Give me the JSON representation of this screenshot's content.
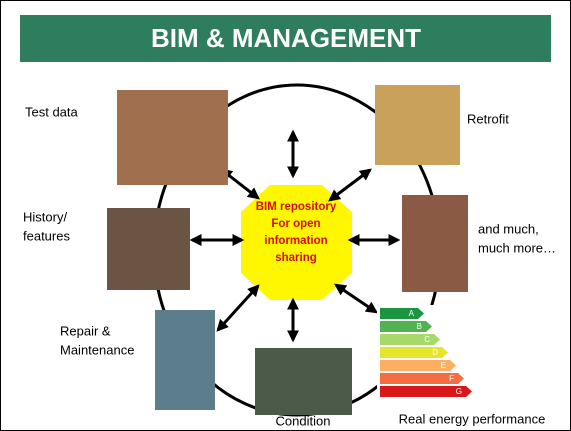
{
  "header": {
    "title": "BIM & MANAGEMENT"
  },
  "center": {
    "lines": [
      "BIM repository",
      "For open",
      "information",
      "sharing"
    ]
  },
  "nodes": [
    {
      "lines": [
        "Test data"
      ]
    },
    {
      "lines": [
        "Retrofit"
      ]
    },
    {
      "lines": [
        "History/",
        "features"
      ]
    },
    {
      "lines": [
        "and much,",
        "much more…"
      ]
    },
    {
      "lines": [
        "Repair &",
        "Maintenance"
      ]
    },
    {
      "lines": [
        "Condition"
      ]
    },
    {
      "lines": [
        "Real energy performance"
      ]
    }
  ],
  "energy_bands": [
    "A",
    "B",
    "C",
    "D",
    "E",
    "F",
    "G"
  ]
}
